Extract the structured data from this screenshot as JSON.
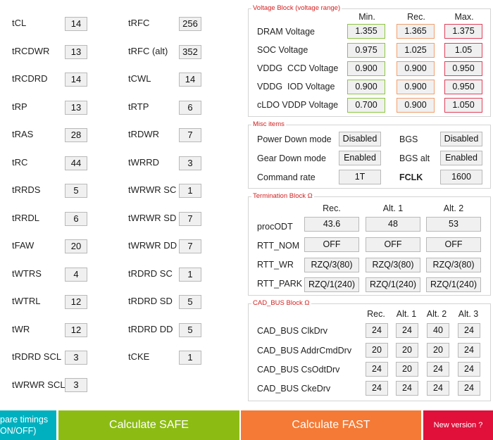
{
  "timings_left": [
    {
      "label": "tCL",
      "value": "14"
    },
    {
      "label": "tRCDWR",
      "value": "13"
    },
    {
      "label": "tRCDRD",
      "value": "14"
    },
    {
      "label": "tRP",
      "value": "13"
    },
    {
      "label": "tRAS",
      "value": "28"
    },
    {
      "label": "tRC",
      "value": "44"
    },
    {
      "label": "tRRDS",
      "value": "5"
    },
    {
      "label": "tRRDL",
      "value": "6"
    },
    {
      "label": "tFAW",
      "value": "20"
    },
    {
      "label": "tWTRS",
      "value": "4"
    },
    {
      "label": "tWTRL",
      "value": "12"
    },
    {
      "label": "tWR",
      "value": "12"
    },
    {
      "label": "tRDRD SCL",
      "value": "3"
    },
    {
      "label": "tWRWR SCL",
      "value": "3"
    }
  ],
  "timings_right": [
    {
      "label": "tRFC",
      "value": "256"
    },
    {
      "label": "tRFC (alt)",
      "value": "352"
    },
    {
      "label": "tCWL",
      "value": "14"
    },
    {
      "label": "tRTP",
      "value": "6"
    },
    {
      "label": "tRDWR",
      "value": "7"
    },
    {
      "label": "tWRRD",
      "value": "3"
    },
    {
      "label": "tWRWR SC",
      "value": "1"
    },
    {
      "label": "tWRWR SD",
      "value": "7"
    },
    {
      "label": "tWRWR DD",
      "value": "7"
    },
    {
      "label": "tRDRD SC",
      "value": "1"
    },
    {
      "label": "tRDRD SD",
      "value": "5"
    },
    {
      "label": "tRDRD DD",
      "value": "5"
    },
    {
      "label": "tCKE",
      "value": "1"
    }
  ],
  "voltage": {
    "title": "Voltage Block (voltage range)",
    "headers": [
      "Min.",
      "Rec.",
      "Max."
    ],
    "rows": [
      {
        "label": "DRAM Voltage",
        "min": "1.355",
        "rec": "1.365",
        "max": "1.375"
      },
      {
        "label": "SOC Voltage",
        "min": "0.975",
        "rec": "1.025",
        "max": "1.05"
      },
      {
        "label": "VDDG  CCD Voltage",
        "min": "0.900",
        "rec": "0.900",
        "max": "0.950"
      },
      {
        "label": "VDDG  IOD Voltage",
        "min": "0.900",
        "rec": "0.900",
        "max": "0.950"
      },
      {
        "label": "cLDO VDDP Voltage",
        "min": "0.700",
        "rec": "0.900",
        "max": "1.050"
      }
    ],
    "colors": {
      "min": "#8dc63f",
      "rec": "#f0a070",
      "max": "#e0405a"
    }
  },
  "misc": {
    "title": "Misc items",
    "power_down_label": "Power Down mode",
    "power_down_value": "Disabled",
    "bgs_label": "BGS",
    "bgs_value": "Disabled",
    "gear_down_label": "Gear Down mode",
    "gear_down_value": "Enabled",
    "bgs_alt_label": "BGS alt",
    "bgs_alt_value": "Enabled",
    "command_rate_label": "Command rate",
    "command_rate_value": "1T",
    "fclk_label": "FCLK",
    "fclk_value": "1600"
  },
  "termination": {
    "title": "Termination Block Ω",
    "headers": [
      "Rec.",
      "Alt. 1",
      "Alt. 2"
    ],
    "rows": [
      {
        "label": "procODT",
        "values": [
          "43.6",
          "48",
          "53"
        ]
      },
      {
        "label": "RTT_NOM",
        "values": [
          "OFF",
          "OFF",
          "OFF"
        ]
      },
      {
        "label": "RTT_WR",
        "values": [
          "RZQ/3(80)",
          "RZQ/3(80)",
          "RZQ/3(80)"
        ]
      },
      {
        "label": "RTT_PARK",
        "values": [
          "RZQ/1(240)",
          "RZQ/1(240)",
          "RZQ/1(240)"
        ]
      }
    ]
  },
  "cad_bus": {
    "title": "CAD_BUS Block Ω",
    "headers": [
      "Rec.",
      "Alt. 1",
      "Alt. 2",
      "Alt. 3"
    ],
    "rows": [
      {
        "label": "CAD_BUS ClkDrv",
        "values": [
          "24",
          "24",
          "40",
          "24"
        ]
      },
      {
        "label": "CAD_BUS AddrCmdDrv",
        "values": [
          "20",
          "20",
          "20",
          "24"
        ]
      },
      {
        "label": "CAD_BUS CsOdtDrv",
        "values": [
          "24",
          "20",
          "24",
          "24"
        ]
      },
      {
        "label": "CAD_BUS CkeDrv",
        "values": [
          "24",
          "24",
          "24",
          "24"
        ]
      }
    ]
  },
  "buttons": {
    "compare_line1": "pare timings",
    "compare_line2": "ON/OFF)",
    "calc_safe": "Calculate SAFE",
    "calc_fast": "Calculate FAST",
    "new_version": "New version ?"
  },
  "colors": {
    "compare_bg": "#00b0bf",
    "safe_bg": "#8cbc14",
    "fast_bg": "#f47a35",
    "new_version_bg": "#e0103a",
    "group_title": "#d42020"
  }
}
